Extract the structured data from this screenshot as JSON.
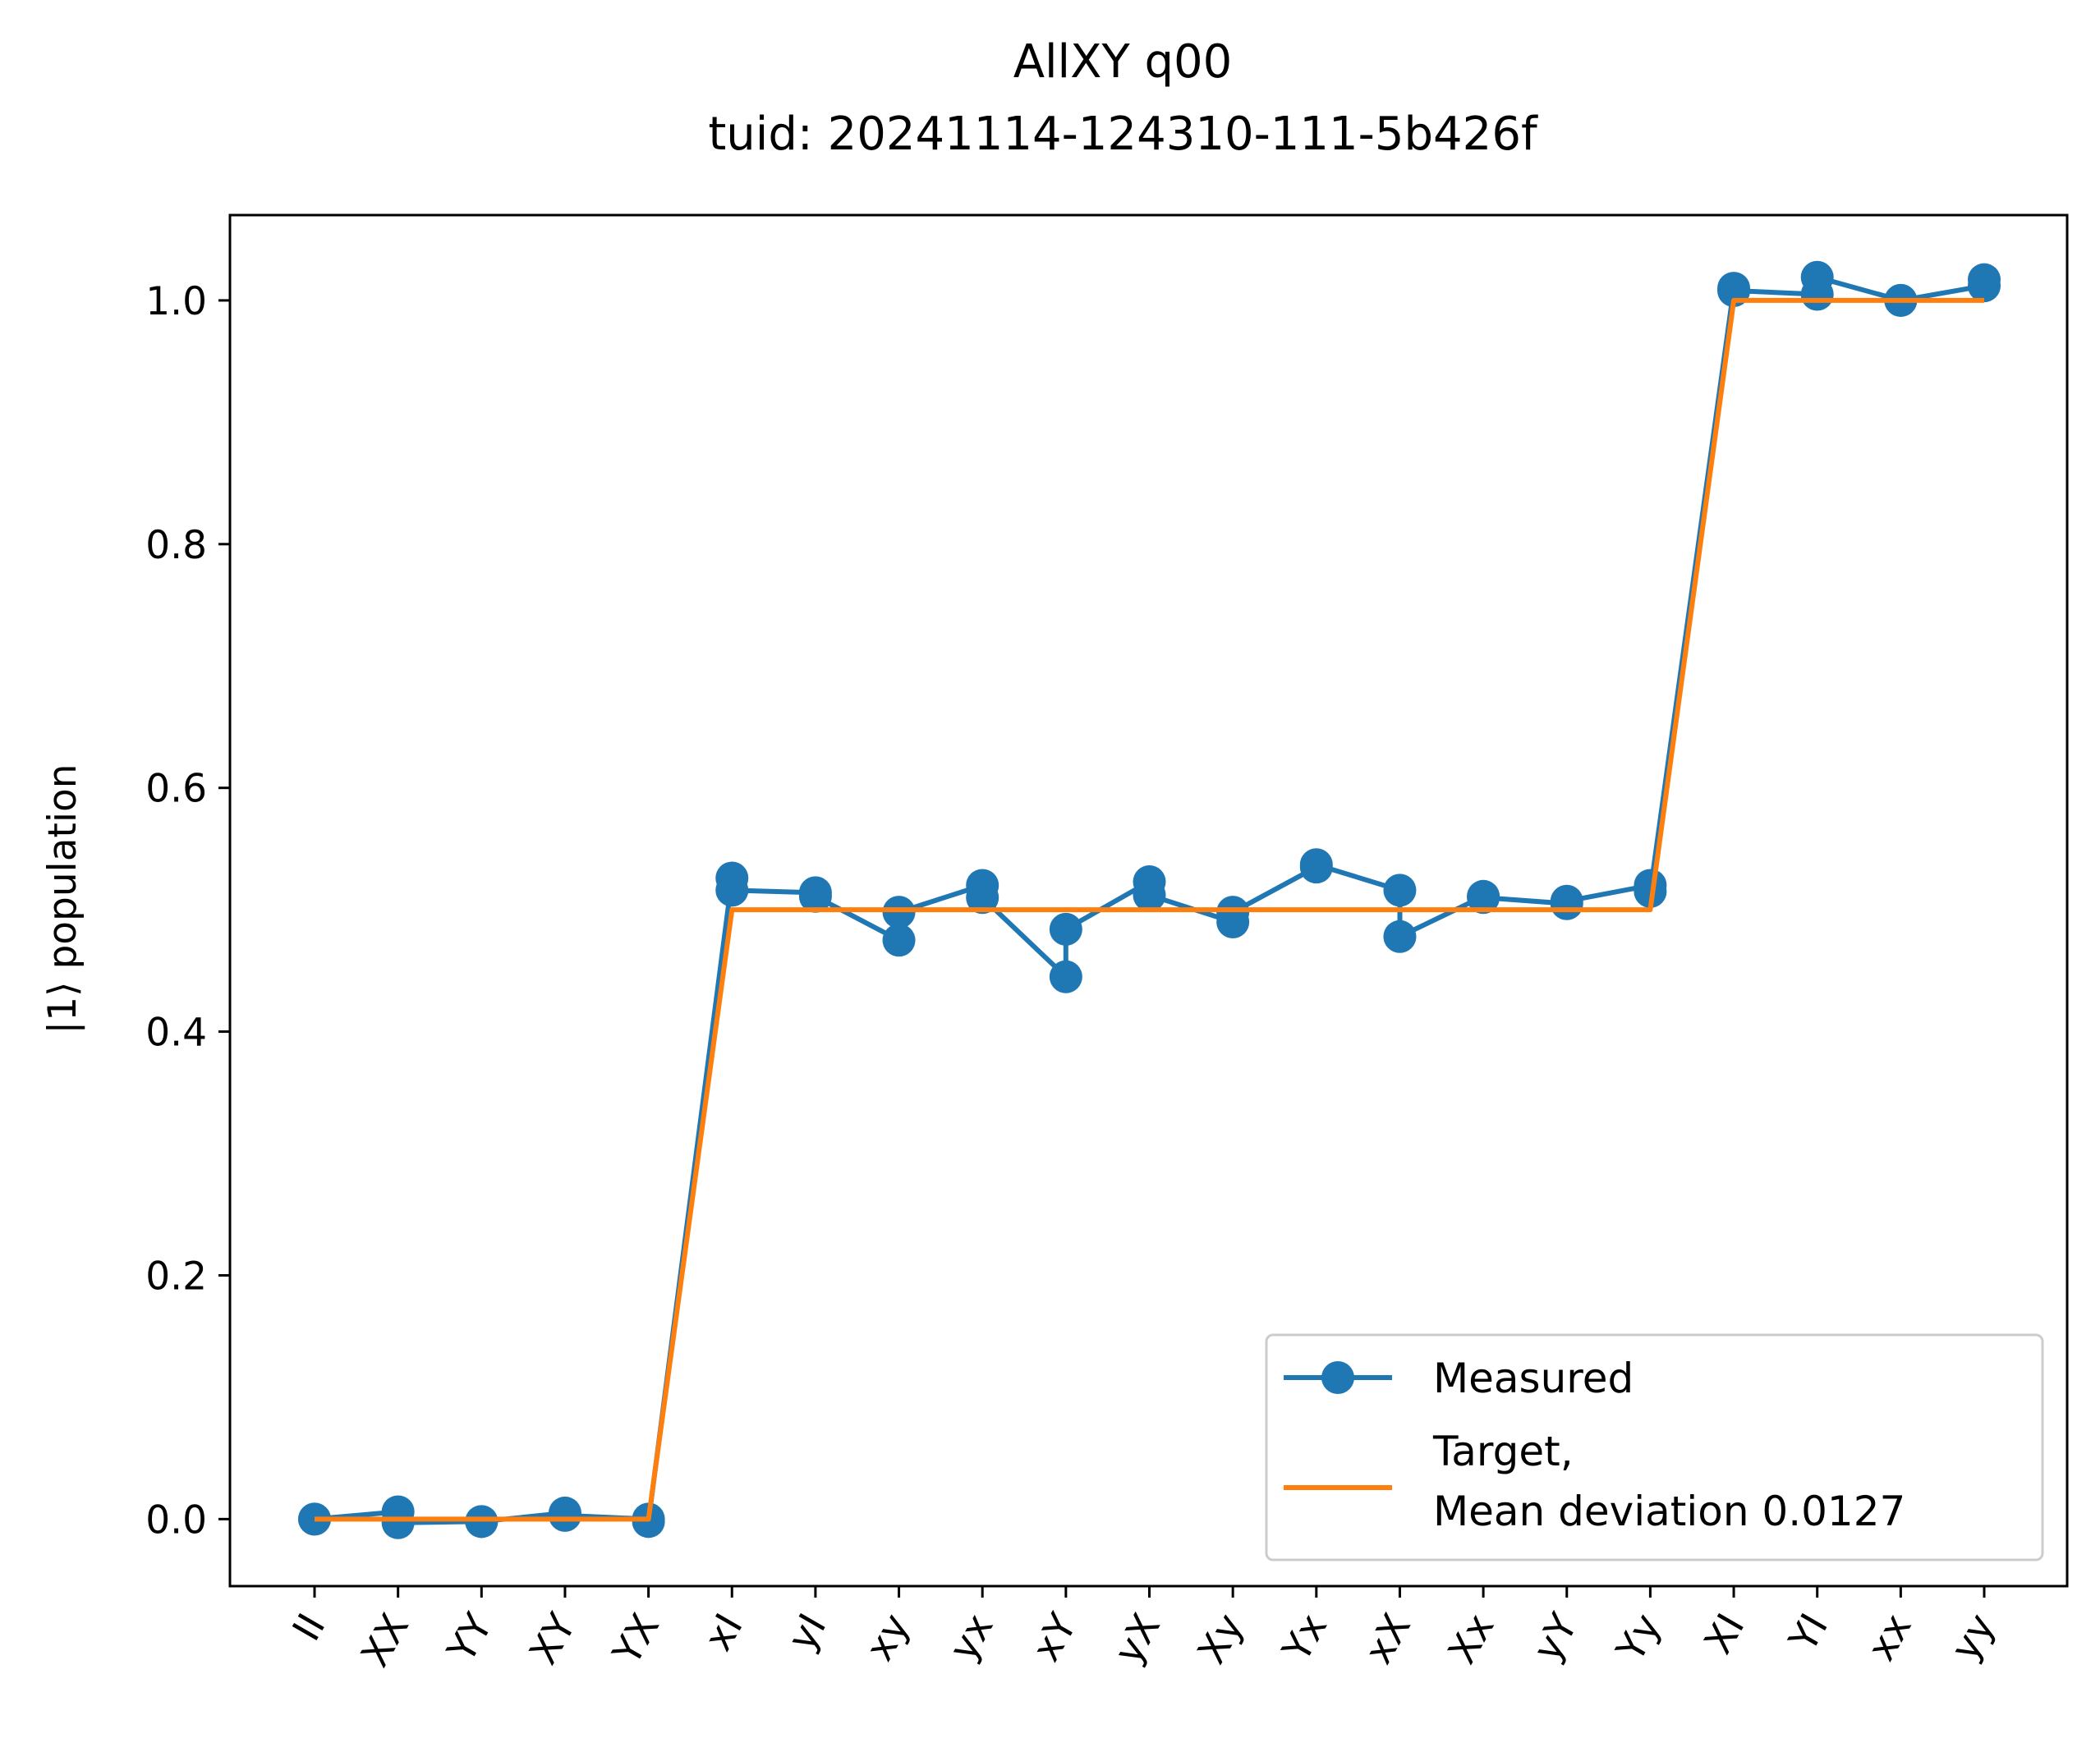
{
  "chart_data": {
    "type": "line",
    "title": "AllXY q00",
    "subtitle": "tuid: 20241114-124310-111-5b426f",
    "xlabel": "",
    "ylabel": "|1⟩ population",
    "ylim": [
      -0.055,
      1.07
    ],
    "yticks": [
      0.0,
      0.2,
      0.4,
      0.6,
      0.8,
      1.0
    ],
    "ytick_labels": [
      "0.0",
      "0.2",
      "0.4",
      "0.6",
      "0.8",
      "1.0"
    ],
    "grid": false,
    "legend_position": "bottom-right",
    "categories": [
      "II",
      "XX",
      "YY",
      "XY",
      "YX",
      "xI",
      "yI",
      "xy",
      "yx",
      "xY",
      "yX",
      "Xy",
      "Yx",
      "xX",
      "Xx",
      "yY",
      "Yy",
      "XI",
      "YI",
      "xx",
      "yy"
    ],
    "x": [
      0,
      0,
      1,
      1,
      2,
      2,
      3,
      3,
      4,
      4,
      5,
      5,
      6,
      6,
      7,
      7,
      8,
      8,
      9,
      9,
      10,
      10,
      11,
      11,
      12,
      12,
      13,
      13,
      14,
      14,
      15,
      15,
      16,
      16,
      17,
      17,
      18,
      18,
      19,
      19,
      20,
      20
    ],
    "series": [
      {
        "name": "Measured",
        "color": "#1f77b4",
        "marker": "circle",
        "values": [
          0.0,
          0.0,
          0.006,
          -0.003,
          -0.002,
          -0.002,
          0.005,
          0.003,
          0.0,
          -0.002,
          0.526,
          0.516,
          0.514,
          0.511,
          0.475,
          0.498,
          0.52,
          0.51,
          0.445,
          0.484,
          0.523,
          0.512,
          0.49,
          0.498,
          0.535,
          0.537,
          0.516,
          0.478,
          0.511,
          0.51,
          0.505,
          0.507,
          0.52,
          0.515,
          1.01,
          1.008,
          1.005,
          1.019,
          1.0,
          1.0,
          1.012,
          1.017
        ]
      },
      {
        "name": "Target,\nMean deviation 0.0127",
        "color": "#ff7f0e",
        "marker": "none",
        "values": [
          0,
          0,
          0,
          0,
          0,
          0,
          0,
          0,
          0,
          0,
          0.5,
          0.5,
          0.5,
          0.5,
          0.5,
          0.5,
          0.5,
          0.5,
          0.5,
          0.5,
          0.5,
          0.5,
          0.5,
          0.5,
          0.5,
          0.5,
          0.5,
          0.5,
          0.5,
          0.5,
          0.5,
          0.5,
          0.5,
          0.5,
          1,
          1,
          1,
          1,
          1,
          1,
          1,
          1
        ]
      }
    ],
    "legend": {
      "measured_label": "Measured",
      "target_label_line1": "Target,",
      "target_label_line2": "Mean deviation 0.0127"
    }
  }
}
